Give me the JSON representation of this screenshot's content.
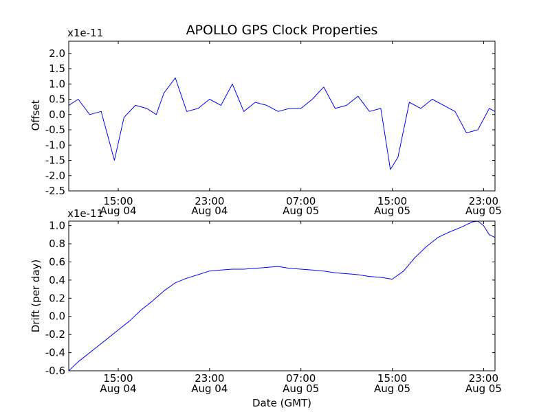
{
  "title": "APOLLO GPS Clock Properties",
  "colors": {
    "line": "#0000ff",
    "frame": "#000000",
    "background": "#ffffff"
  },
  "x_axis": {
    "label": "Date (GMT)",
    "ticks": [
      {
        "time": "15:00",
        "date": "Aug 04"
      },
      {
        "time": "23:00",
        "date": "Aug 04"
      },
      {
        "time": "07:00",
        "date": "Aug 05"
      },
      {
        "time": "15:00",
        "date": "Aug 05"
      },
      {
        "time": "23:00",
        "date": "Aug 05"
      }
    ]
  },
  "chart_data": [
    {
      "type": "line",
      "title": "APOLLO GPS Clock Properties",
      "xlabel": "",
      "ylabel": "Offset",
      "y_scale_note": "x1e-11",
      "x_range": [
        "2008-08-04 10:40",
        "2008-08-06 00:00"
      ],
      "ylim": [
        -2.5,
        2.4
      ],
      "yticks": [
        -2.5,
        -2.0,
        -1.5,
        -1.0,
        -0.5,
        0.0,
        0.5,
        1.0,
        1.5,
        2.0
      ],
      "ytick_labels": [
        "-2.5",
        "-2.0",
        "-1.5",
        "-1.0",
        "-0.5",
        "0.0",
        "0.5",
        "1.0",
        "1.5",
        "2.0"
      ],
      "xticks": [
        "2008-08-04 15:00",
        "2008-08-04 23:00",
        "2008-08-05 07:00",
        "2008-08-05 15:00",
        "2008-08-05 23:00"
      ],
      "grid": false,
      "series": [
        {
          "color": "#0000ff",
          "x": [
            "2008-08-04 10:40",
            "2008-08-04 11:30",
            "2008-08-04 12:30",
            "2008-08-04 13:30",
            "2008-08-04 14:40",
            "2008-08-04 15:30",
            "2008-08-04 16:30",
            "2008-08-04 17:30",
            "2008-08-04 18:20",
            "2008-08-04 19:00",
            "2008-08-04 20:00",
            "2008-08-04 21:00",
            "2008-08-04 22:00",
            "2008-08-04 23:00",
            "2008-08-05 00:00",
            "2008-08-05 01:00",
            "2008-08-05 02:00",
            "2008-08-05 03:00",
            "2008-08-05 04:00",
            "2008-08-05 05:00",
            "2008-08-05 06:00",
            "2008-08-05 07:00",
            "2008-08-05 08:00",
            "2008-08-05 09:00",
            "2008-08-05 10:00",
            "2008-08-05 11:00",
            "2008-08-05 12:00",
            "2008-08-05 13:00",
            "2008-08-05 14:00",
            "2008-08-05 14:50",
            "2008-08-05 15:30",
            "2008-08-05 16:30",
            "2008-08-05 17:30",
            "2008-08-05 18:30",
            "2008-08-05 19:30",
            "2008-08-05 20:30",
            "2008-08-05 21:30",
            "2008-08-05 22:30",
            "2008-08-05 23:30",
            "2008-08-06 00:00"
          ],
          "y": [
            0.3,
            0.5,
            0.0,
            0.1,
            -1.5,
            -0.1,
            0.3,
            0.2,
            0.0,
            0.7,
            1.2,
            0.1,
            0.2,
            0.5,
            0.3,
            1.0,
            0.1,
            0.4,
            0.3,
            0.1,
            0.2,
            0.2,
            0.5,
            0.9,
            0.2,
            0.3,
            0.6,
            0.1,
            0.2,
            -1.8,
            -1.4,
            0.4,
            0.2,
            0.5,
            0.3,
            0.1,
            -0.6,
            -0.5,
            0.2,
            0.1
          ]
        }
      ]
    },
    {
      "type": "line",
      "title": "",
      "xlabel": "Date (GMT)",
      "ylabel": "Drift (per day)",
      "y_scale_note": "x1e-11",
      "x_range": [
        "2008-08-04 10:40",
        "2008-08-06 00:00"
      ],
      "ylim": [
        -0.6,
        1.05
      ],
      "yticks": [
        -0.6,
        -0.4,
        -0.2,
        0.0,
        0.2,
        0.4,
        0.6,
        0.8,
        1.0
      ],
      "ytick_labels": [
        "-0.6",
        "-0.4",
        "-0.2",
        "0.0",
        "0.2",
        "0.4",
        "0.6",
        "0.8",
        "1.0"
      ],
      "xticks": [
        "2008-08-04 15:00",
        "2008-08-04 23:00",
        "2008-08-05 07:00",
        "2008-08-05 15:00",
        "2008-08-05 23:00"
      ],
      "grid": false,
      "series": [
        {
          "color": "#0000ff",
          "x": [
            "2008-08-04 10:40",
            "2008-08-04 11:30",
            "2008-08-04 13:00",
            "2008-08-04 14:00",
            "2008-08-04 15:00",
            "2008-08-04 16:00",
            "2008-08-04 17:00",
            "2008-08-04 18:00",
            "2008-08-04 19:00",
            "2008-08-04 20:00",
            "2008-08-04 21:00",
            "2008-08-04 22:00",
            "2008-08-04 23:00",
            "2008-08-05 00:00",
            "2008-08-05 01:00",
            "2008-08-05 02:00",
            "2008-08-05 03:00",
            "2008-08-05 04:00",
            "2008-08-05 05:00",
            "2008-08-05 06:00",
            "2008-08-05 07:00",
            "2008-08-05 08:00",
            "2008-08-05 09:00",
            "2008-08-05 10:00",
            "2008-08-05 11:00",
            "2008-08-05 12:00",
            "2008-08-05 13:00",
            "2008-08-05 14:00",
            "2008-08-05 15:00",
            "2008-08-05 16:00",
            "2008-08-05 17:00",
            "2008-08-05 18:00",
            "2008-08-05 19:00",
            "2008-08-05 20:00",
            "2008-08-05 21:00",
            "2008-08-05 22:00",
            "2008-08-05 22:30",
            "2008-08-05 23:00",
            "2008-08-05 23:30",
            "2008-08-06 00:00"
          ],
          "y": [
            -0.6,
            -0.5,
            -0.35,
            -0.25,
            -0.15,
            -0.05,
            0.07,
            0.17,
            0.28,
            0.37,
            0.42,
            0.46,
            0.5,
            0.51,
            0.52,
            0.52,
            0.53,
            0.54,
            0.55,
            0.53,
            0.52,
            0.51,
            0.5,
            0.48,
            0.47,
            0.46,
            0.44,
            0.43,
            0.41,
            0.5,
            0.65,
            0.77,
            0.87,
            0.93,
            0.98,
            1.04,
            1.05,
            1.0,
            0.9,
            0.87
          ]
        }
      ]
    }
  ]
}
